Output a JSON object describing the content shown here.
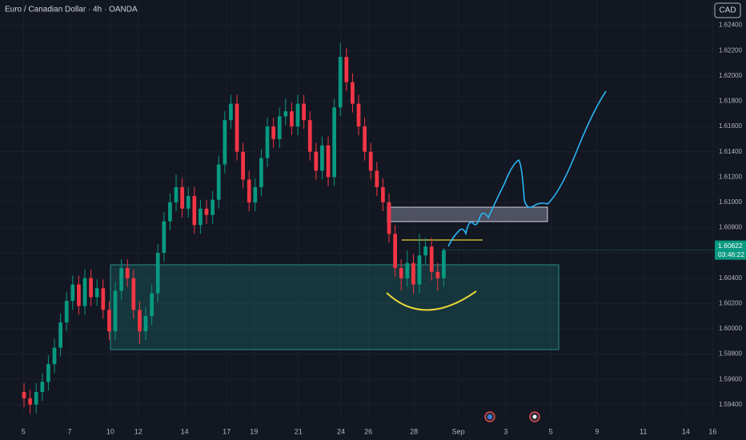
{
  "chart_data": {
    "type": "candlestick",
    "title": "Euro / Canadian Dollar · 4h · OANDA",
    "currency_button": "CAD",
    "countdown": "03:46:22",
    "up_color": "#089981",
    "down_color": "#f23645",
    "grid": true,
    "x": [
      0,
      1,
      2,
      3,
      4,
      5,
      6,
      7,
      8,
      9,
      10,
      11,
      12,
      13,
      14,
      15,
      16,
      17,
      18,
      19,
      20,
      21,
      22,
      23,
      24,
      25,
      26,
      27,
      28,
      29,
      30,
      31,
      32,
      33,
      34,
      35,
      36,
      37,
      38,
      39,
      40,
      41,
      42,
      43,
      44,
      45,
      46,
      47,
      48,
      49,
      50,
      51,
      52,
      53,
      54,
      55,
      56,
      57,
      58,
      59,
      60,
      61,
      62,
      63,
      64,
      65,
      66,
      67,
      68,
      69
    ],
    "open": [
      1.595,
      1.5945,
      1.594,
      1.595,
      1.5958,
      1.5972,
      1.5985,
      1.6005,
      1.6022,
      1.6035,
      1.6018,
      1.604,
      1.6025,
      1.6032,
      1.6015,
      1.5998,
      1.603,
      1.6048,
      1.604,
      1.6015,
      1.5998,
      1.601,
      1.6028,
      1.606,
      1.6085,
      1.61,
      1.6112,
      1.6095,
      1.6105,
      1.6082,
      1.6095,
      1.609,
      1.6102,
      1.613,
      1.6165,
      1.6178,
      1.614,
      1.6118,
      1.61,
      1.6112,
      1.6135,
      1.616,
      1.615,
      1.6168,
      1.6172,
      1.616,
      1.6178,
      1.6165,
      1.614,
      1.6125,
      1.6145,
      1.612,
      1.6175,
      1.6215,
      1.6195,
      1.6178,
      1.616,
      1.614,
      1.6125,
      1.6112,
      1.61,
      1.6075,
      1.6048,
      1.604,
      1.6052,
      1.6035,
      1.6058,
      1.6065,
      1.6045,
      1.604
    ],
    "high": [
      1.5957,
      1.5952,
      1.5957,
      1.5965,
      1.5979,
      1.5992,
      1.6012,
      1.6029,
      1.6042,
      1.6042,
      1.6047,
      1.6047,
      1.6039,
      1.6039,
      1.6022,
      1.6037,
      1.6055,
      1.6055,
      1.6047,
      1.6022,
      1.6017,
      1.6035,
      1.6067,
      1.6092,
      1.6107,
      1.6122,
      1.6119,
      1.6112,
      1.6112,
      1.6102,
      1.6102,
      1.6109,
      1.6137,
      1.6172,
      1.6185,
      1.6185,
      1.6147,
      1.6125,
      1.6119,
      1.6142,
      1.6167,
      1.6167,
      1.6175,
      1.6182,
      1.6179,
      1.6185,
      1.6185,
      1.6172,
      1.6147,
      1.6152,
      1.6152,
      1.6182,
      1.6226,
      1.6222,
      1.6202,
      1.6185,
      1.6167,
      1.6147,
      1.6132,
      1.6119,
      1.6107,
      1.6082,
      1.6055,
      1.6062,
      1.6059,
      1.6075,
      1.6072,
      1.6072,
      1.6052,
      1.6064
    ],
    "low": [
      1.5938,
      1.5933,
      1.5933,
      1.5943,
      1.5951,
      1.5965,
      1.5978,
      1.5998,
      1.6015,
      1.6011,
      1.6011,
      1.6018,
      1.6018,
      1.6008,
      1.5991,
      1.5991,
      1.6023,
      1.6033,
      1.6008,
      1.5988,
      1.5991,
      1.6003,
      1.6021,
      1.6053,
      1.6078,
      1.6093,
      1.6088,
      1.6088,
      1.6075,
      1.6075,
      1.6083,
      1.6083,
      1.6095,
      1.6123,
      1.6158,
      1.6133,
      1.6111,
      1.6093,
      1.6093,
      1.6105,
      1.6128,
      1.6143,
      1.6143,
      1.6161,
      1.6153,
      1.6153,
      1.6158,
      1.6133,
      1.6118,
      1.6118,
      1.6113,
      1.6113,
      1.6168,
      1.6188,
      1.6171,
      1.6153,
      1.6133,
      1.6118,
      1.6105,
      1.6093,
      1.6068,
      1.6041,
      1.603,
      1.6033,
      1.6028,
      1.6028,
      1.6051,
      1.6038,
      1.603,
      1.6033
    ],
    "close": [
      1.5945,
      1.594,
      1.595,
      1.5958,
      1.5972,
      1.5985,
      1.6005,
      1.6022,
      1.6035,
      1.6018,
      1.604,
      1.6025,
      1.6032,
      1.6015,
      1.5998,
      1.603,
      1.6048,
      1.604,
      1.6015,
      1.5998,
      1.601,
      1.6028,
      1.606,
      1.6085,
      1.61,
      1.6112,
      1.6095,
      1.6105,
      1.6082,
      1.6095,
      1.609,
      1.6102,
      1.613,
      1.6165,
      1.6178,
      1.614,
      1.6118,
      1.61,
      1.6112,
      1.6135,
      1.616,
      1.615,
      1.6168,
      1.6172,
      1.616,
      1.6178,
      1.6165,
      1.614,
      1.6125,
      1.6145,
      1.612,
      1.6175,
      1.6215,
      1.6195,
      1.6178,
      1.616,
      1.614,
      1.6125,
      1.6112,
      1.61,
      1.6075,
      1.6048,
      1.604,
      1.6052,
      1.6035,
      1.6058,
      1.6065,
      1.6045,
      1.604,
      1.60622
    ],
    "xlim": [
      -3.95,
      113.55
    ],
    "ylim": [
      1.5931,
      1.626
    ],
    "xticks": [
      {
        "value": -0.1,
        "label": "5"
      },
      {
        "value": 7.5,
        "label": "7"
      },
      {
        "value": 14.2,
        "label": "10"
      },
      {
        "value": 18.8,
        "label": "12"
      },
      {
        "value": 26.4,
        "label": "14"
      },
      {
        "value": 33.3,
        "label": "17"
      },
      {
        "value": 37.8,
        "label": "19"
      },
      {
        "value": 45.1,
        "label": "21"
      },
      {
        "value": 52.1,
        "label": "24"
      },
      {
        "value": 56.6,
        "label": "26"
      },
      {
        "value": 64.1,
        "label": "28"
      },
      {
        "value": 71.4,
        "label": "Sep"
      },
      {
        "value": 79.2,
        "label": "3"
      },
      {
        "value": 86.6,
        "label": "5"
      },
      {
        "value": 94.2,
        "label": "9"
      },
      {
        "value": 101.8,
        "label": "11"
      },
      {
        "value": 108.8,
        "label": "14"
      },
      {
        "value": 113.2,
        "label": "16"
      }
    ],
    "yticks": [
      {
        "value": 1.624,
        "label": "1.62400"
      },
      {
        "value": 1.622,
        "label": "1.62200"
      },
      {
        "value": 1.62,
        "label": "1.62000"
      },
      {
        "value": 1.618,
        "label": "1.61800"
      },
      {
        "value": 1.616,
        "label": "1.61600"
      },
      {
        "value": 1.614,
        "label": "1.61400"
      },
      {
        "value": 1.612,
        "label": "1.61200"
      },
      {
        "value": 1.61,
        "label": "1.61000"
      },
      {
        "value": 1.608,
        "label": "1.60800"
      },
      {
        "value": 1.606,
        "label": "1.60600"
      },
      {
        "value": 1.604,
        "label": "1.60400"
      },
      {
        "value": 1.602,
        "label": "1.60200"
      },
      {
        "value": 1.6,
        "label": "1.60000"
      },
      {
        "value": 1.598,
        "label": "1.59800"
      },
      {
        "value": 1.596,
        "label": "1.59600"
      },
      {
        "value": 1.594,
        "label": "1.59400"
      }
    ]
  }
}
